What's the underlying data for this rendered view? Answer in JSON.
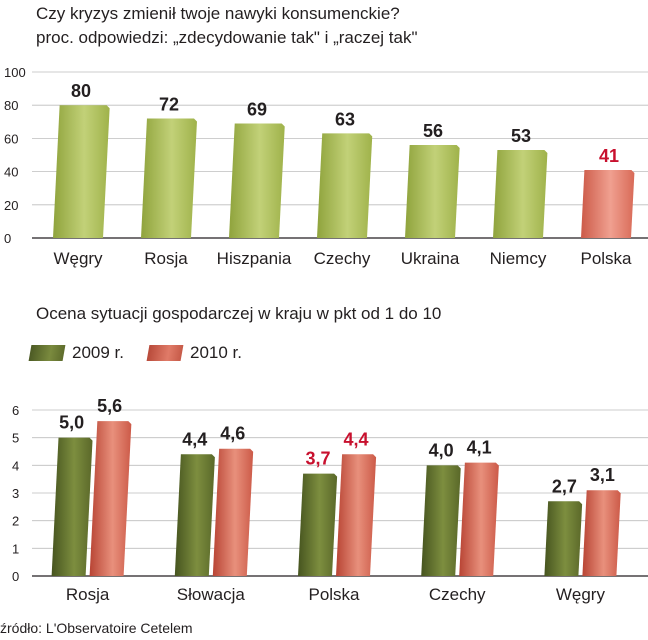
{
  "chart_data": [
    {
      "type": "bar",
      "title": "Czy kryzys zmienił twoje nawyki konsumenckie?",
      "subtitle": "proc. odpowiedzi: „zdecydowanie tak\" i „raczej tak\"",
      "categories": [
        "Węgry",
        "Rosja",
        "Hiszpania",
        "Czechy",
        "Ukraina",
        "Niemcy",
        "Polska"
      ],
      "values": [
        80,
        72,
        69,
        63,
        56,
        53,
        41
      ],
      "value_labels": [
        "80",
        "72",
        "69",
        "63",
        "56",
        "53",
        "41"
      ],
      "highlight": "Polska",
      "yticks": [
        "0",
        "20",
        "40",
        "60",
        "80",
        "100"
      ],
      "ylim": [
        0,
        100
      ],
      "grid": true,
      "colors": {
        "bar": "#a3b850",
        "highlight": "#df7b6b",
        "highlight_label": "#c8102e"
      }
    },
    {
      "type": "bar",
      "title": "Ocena sytuacji gospodarczej w kraju w pkt od 1 do 10",
      "categories": [
        "Rosja",
        "Słowacja",
        "Polska",
        "Czechy",
        "Węgry"
      ],
      "series": [
        {
          "name": "2009 r.",
          "values": [
            5.0,
            4.4,
            3.7,
            4.0,
            2.7
          ],
          "labels": [
            "5,0",
            "4,4",
            "3,7",
            "4,0",
            "2,7"
          ]
        },
        {
          "name": "2010 r.",
          "values": [
            5.6,
            4.6,
            4.4,
            4.1,
            3.1
          ],
          "labels": [
            "5,6",
            "4,6",
            "4,4",
            "4,1",
            "3,1"
          ]
        }
      ],
      "highlight": "Polska",
      "yticks": [
        "0",
        "1",
        "2",
        "3",
        "4",
        "5",
        "6"
      ],
      "ylim": [
        0,
        6
      ],
      "grid": true,
      "legend": "top-left",
      "colors": {
        "2009": "#6b7a33",
        "2010": "#d86a57",
        "highlight_label": "#c8102e"
      }
    }
  ],
  "source": "źródło: L'Observatoire Cetelem"
}
